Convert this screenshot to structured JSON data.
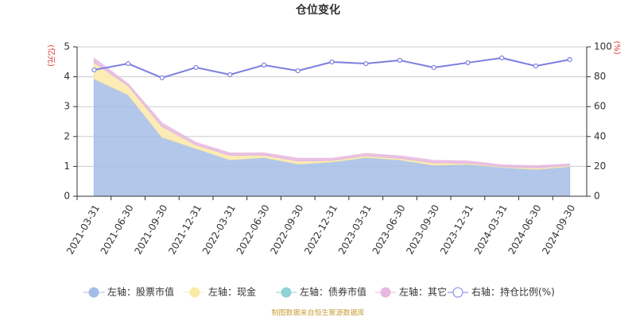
{
  "chart_data": {
    "type": "stacked_area_line",
    "title": "仓位变化",
    "y_label": "(亿元)",
    "y2_label": "(%)",
    "categories": [
      "2021-03-31",
      "2021-06-30",
      "2021-09-30",
      "2021-12-31",
      "2022-03-31",
      "2022-06-30",
      "2022-09-30",
      "2022-12-31",
      "2023-03-31",
      "2023-06-30",
      "2023-09-30",
      "2023-12-31",
      "2024-03-31",
      "2024-06-30",
      "2024-09-30"
    ],
    "series": [
      {
        "name": "左轴：股票市值",
        "color": "#a4bde6",
        "values": [
          3.93,
          3.4,
          1.98,
          1.6,
          1.22,
          1.3,
          1.08,
          1.15,
          1.3,
          1.22,
          1.04,
          1.07,
          0.97,
          0.9,
          1.0
        ]
      },
      {
        "name": "左轴：现金",
        "color": "#fbe9a8",
        "values": [
          0.55,
          0.3,
          0.35,
          0.12,
          0.15,
          0.08,
          0.1,
          0.05,
          0.06,
          0.05,
          0.08,
          0.04,
          0.02,
          0.05,
          0.03
        ]
      },
      {
        "name": "左轴：债券市值",
        "color": "#8fd3d6",
        "values": [
          0,
          0,
          0,
          0,
          0,
          0,
          0,
          0,
          0,
          0,
          0,
          0,
          0,
          0,
          0
        ]
      },
      {
        "name": "左轴：其它",
        "color": "#e8b9e0",
        "values": [
          0.14,
          0.07,
          0.12,
          0.08,
          0.08,
          0.07,
          0.09,
          0.07,
          0.07,
          0.08,
          0.08,
          0.07,
          0.06,
          0.07,
          0.05
        ]
      },
      {
        "name": "右轴：持仓比例(%)",
        "color": "#7b7fdf",
        "axis": "y2",
        "values": [
          84.6,
          88.8,
          79.3,
          86.2,
          81.4,
          87.8,
          84,
          89.9,
          88.8,
          91,
          86.2,
          89.4,
          92.6,
          87.2,
          91.5
        ]
      }
    ],
    "ylim": [
      0,
      5
    ],
    "yticks": [
      0,
      1,
      2,
      3,
      4,
      5
    ],
    "y2lim": [
      0,
      100
    ],
    "y2ticks": [
      0,
      20,
      40,
      60,
      80,
      100
    ],
    "grid": true,
    "source": "制图数据来自恒生聚源数据库"
  }
}
